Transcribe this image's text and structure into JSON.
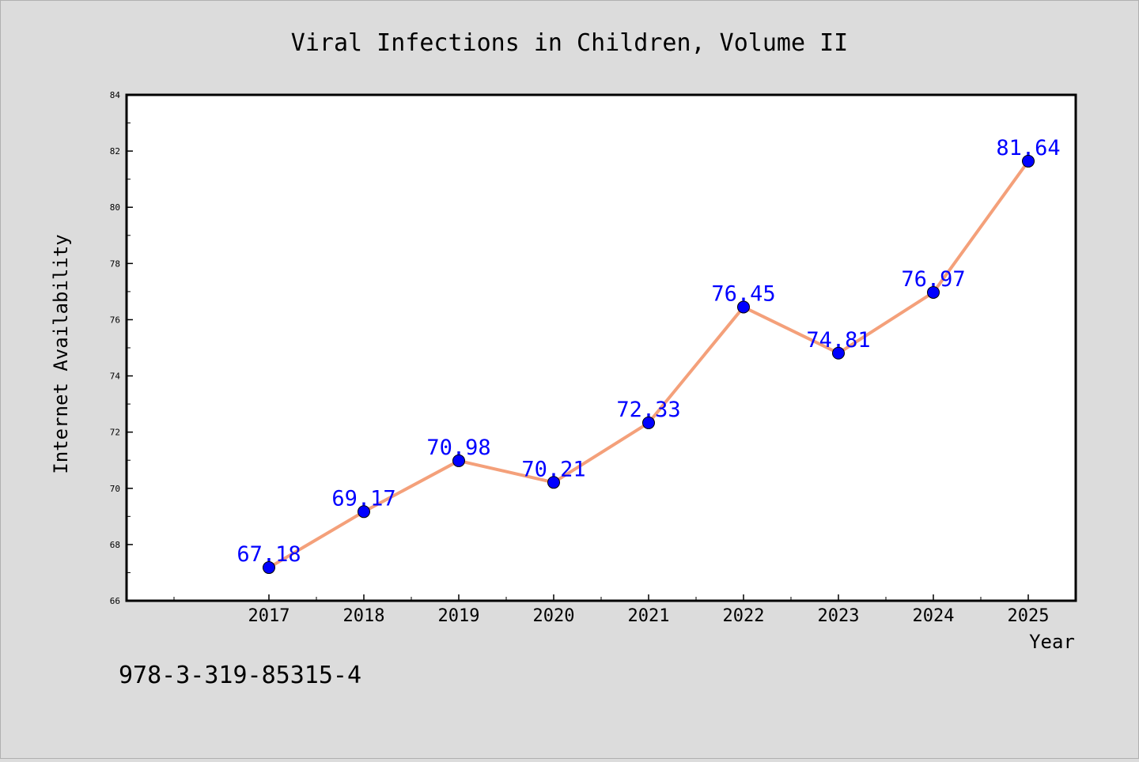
{
  "chart_data": {
    "type": "line",
    "title": "Viral Infections in Children, Volume II",
    "xlabel": "Year",
    "ylabel": "Internet Availability",
    "categories": [
      "2017",
      "2018",
      "2019",
      "2020",
      "2021",
      "2022",
      "2023",
      "2024",
      "2025"
    ],
    "values": [
      67.18,
      69.17,
      70.98,
      70.21,
      72.33,
      76.45,
      74.81,
      76.97,
      81.64
    ],
    "data_labels": [
      "67.18",
      "69.17",
      "70.98",
      "70.21",
      "72.33",
      "76.45",
      "74.81",
      "76.97",
      "81.64"
    ],
    "ylim": [
      66,
      84
    ],
    "yticks": [
      "66",
      "68",
      "70",
      "72",
      "74",
      "76",
      "78",
      "80",
      "82",
      "84"
    ],
    "grid": false,
    "legend": "none",
    "colors": {
      "line": "#f4a07a",
      "marker": "#0000ff",
      "label": "#0000ff",
      "background": "#dcdcdc",
      "plot_background": "#ffffff"
    }
  },
  "footer": {
    "isbn": "978-3-319-85315-4"
  }
}
